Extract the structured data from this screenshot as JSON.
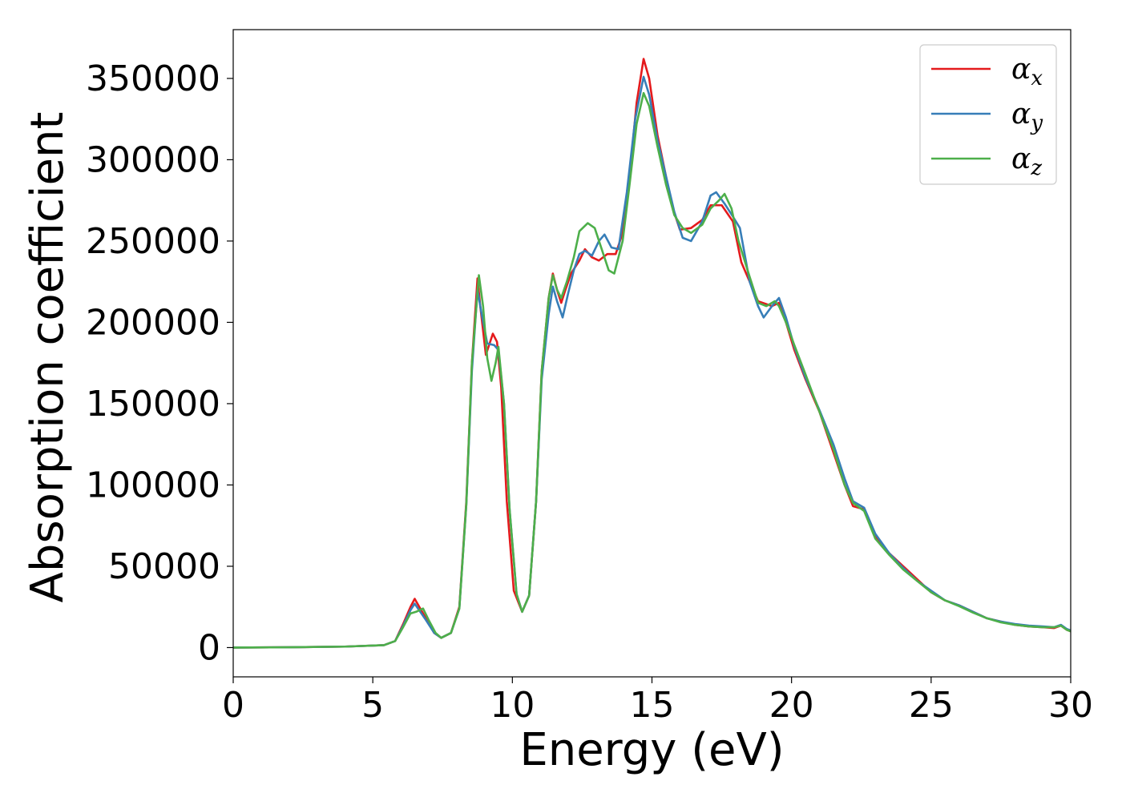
{
  "chart_data": {
    "type": "line",
    "title": "",
    "xlabel": "Energy (eV)",
    "ylabel": "Absorption coefficient",
    "xlim": [
      0,
      30
    ],
    "ylim": [
      -18000,
      380000
    ],
    "xticks": [
      0,
      5,
      10,
      15,
      20,
      25,
      30
    ],
    "xtick_labels": [
      "0",
      "5",
      "10",
      "15",
      "20",
      "25",
      "30"
    ],
    "yticks": [
      0,
      50000,
      100000,
      150000,
      200000,
      250000,
      300000,
      350000
    ],
    "ytick_labels": [
      "0",
      "50000",
      "100000",
      "150000",
      "200000",
      "250000",
      "300000",
      "350000"
    ],
    "grid": false,
    "legend": {
      "placement": "top-right"
    },
    "series": [
      {
        "name": "α",
        "subscript": "x",
        "color": "#e41a1c",
        "points": [
          [
            0,
            0
          ],
          [
            2,
            200
          ],
          [
            4,
            600
          ],
          [
            5.4,
            1500
          ],
          [
            5.8,
            4000
          ],
          [
            6.1,
            15000
          ],
          [
            6.35,
            25000
          ],
          [
            6.5,
            30000
          ],
          [
            6.7,
            24000
          ],
          [
            6.9,
            18000
          ],
          [
            7.2,
            9000
          ],
          [
            7.45,
            6000
          ],
          [
            7.8,
            9000
          ],
          [
            8.1,
            25000
          ],
          [
            8.35,
            90000
          ],
          [
            8.55,
            175000
          ],
          [
            8.75,
            227000
          ],
          [
            8.85,
            210000
          ],
          [
            9.05,
            180000
          ],
          [
            9.3,
            193000
          ],
          [
            9.45,
            188000
          ],
          [
            9.6,
            160000
          ],
          [
            9.8,
            90000
          ],
          [
            10.05,
            35000
          ],
          [
            10.35,
            22000
          ],
          [
            10.6,
            32000
          ],
          [
            10.85,
            90000
          ],
          [
            11.05,
            170000
          ],
          [
            11.3,
            215000
          ],
          [
            11.45,
            230000
          ],
          [
            11.6,
            220000
          ],
          [
            11.75,
            212000
          ],
          [
            11.9,
            220000
          ],
          [
            12.1,
            230000
          ],
          [
            12.4,
            238000
          ],
          [
            12.6,
            245000
          ],
          [
            12.85,
            240000
          ],
          [
            13.1,
            238000
          ],
          [
            13.4,
            242000
          ],
          [
            13.7,
            242000
          ],
          [
            13.95,
            255000
          ],
          [
            14.2,
            290000
          ],
          [
            14.45,
            335000
          ],
          [
            14.7,
            362000
          ],
          [
            14.9,
            350000
          ],
          [
            15.2,
            315000
          ],
          [
            15.5,
            290000
          ],
          [
            15.75,
            270000
          ],
          [
            16.0,
            257000
          ],
          [
            16.4,
            258000
          ],
          [
            16.8,
            263000
          ],
          [
            17.1,
            272000
          ],
          [
            17.5,
            272000
          ],
          [
            17.9,
            262000
          ],
          [
            18.2,
            237000
          ],
          [
            18.5,
            225000
          ],
          [
            18.8,
            213000
          ],
          [
            19.3,
            210000
          ],
          [
            19.55,
            212000
          ],
          [
            19.8,
            200000
          ],
          [
            20.1,
            183000
          ],
          [
            20.5,
            165000
          ],
          [
            21.0,
            145000
          ],
          [
            21.5,
            120000
          ],
          [
            21.9,
            100000
          ],
          [
            22.2,
            87000
          ],
          [
            22.6,
            85000
          ],
          [
            23.0,
            68000
          ],
          [
            23.5,
            58000
          ],
          [
            24.0,
            50000
          ],
          [
            24.5,
            42000
          ],
          [
            25.0,
            34000
          ],
          [
            25.5,
            29000
          ],
          [
            26.0,
            26000
          ],
          [
            26.5,
            22000
          ],
          [
            27.0,
            18000
          ],
          [
            27.5,
            16000
          ],
          [
            28.0,
            14000
          ],
          [
            28.5,
            13000
          ],
          [
            29.0,
            12500
          ],
          [
            29.4,
            12000
          ],
          [
            29.65,
            13500
          ],
          [
            29.85,
            11000
          ],
          [
            30.0,
            10000
          ]
        ]
      },
      {
        "name": "α",
        "subscript": "y",
        "color": "#377eb8",
        "points": [
          [
            0,
            0
          ],
          [
            2,
            200
          ],
          [
            4,
            600
          ],
          [
            5.4,
            1500
          ],
          [
            5.8,
            4000
          ],
          [
            6.1,
            14000
          ],
          [
            6.35,
            23000
          ],
          [
            6.5,
            27000
          ],
          [
            6.7,
            22000
          ],
          [
            6.9,
            17000
          ],
          [
            7.2,
            9000
          ],
          [
            7.45,
            6000
          ],
          [
            7.8,
            9000
          ],
          [
            8.1,
            24000
          ],
          [
            8.35,
            88000
          ],
          [
            8.55,
            170000
          ],
          [
            8.75,
            220000
          ],
          [
            8.9,
            205000
          ],
          [
            9.1,
            187000
          ],
          [
            9.35,
            186000
          ],
          [
            9.5,
            183000
          ],
          [
            9.7,
            150000
          ],
          [
            9.9,
            85000
          ],
          [
            10.15,
            33000
          ],
          [
            10.35,
            22000
          ],
          [
            10.6,
            32000
          ],
          [
            10.85,
            90000
          ],
          [
            11.05,
            165000
          ],
          [
            11.3,
            205000
          ],
          [
            11.45,
            222000
          ],
          [
            11.6,
            213000
          ],
          [
            11.8,
            203000
          ],
          [
            12.0,
            218000
          ],
          [
            12.2,
            232000
          ],
          [
            12.4,
            242000
          ],
          [
            12.6,
            244000
          ],
          [
            12.85,
            241000
          ],
          [
            13.1,
            250000
          ],
          [
            13.3,
            254000
          ],
          [
            13.55,
            246000
          ],
          [
            13.8,
            245000
          ],
          [
            14.1,
            280000
          ],
          [
            14.4,
            325000
          ],
          [
            14.7,
            351000
          ],
          [
            14.9,
            340000
          ],
          [
            15.2,
            312000
          ],
          [
            15.5,
            290000
          ],
          [
            15.8,
            268000
          ],
          [
            16.1,
            252000
          ],
          [
            16.4,
            250000
          ],
          [
            16.8,
            262000
          ],
          [
            17.1,
            278000
          ],
          [
            17.3,
            280000
          ],
          [
            17.6,
            273000
          ],
          [
            17.9,
            265000
          ],
          [
            18.15,
            258000
          ],
          [
            18.5,
            225000
          ],
          [
            18.8,
            210000
          ],
          [
            19.0,
            203000
          ],
          [
            19.3,
            210000
          ],
          [
            19.55,
            215000
          ],
          [
            19.8,
            203000
          ],
          [
            20.1,
            185000
          ],
          [
            20.5,
            166000
          ],
          [
            21.0,
            146000
          ],
          [
            21.5,
            125000
          ],
          [
            21.9,
            104000
          ],
          [
            22.2,
            90000
          ],
          [
            22.6,
            86000
          ],
          [
            23.0,
            70000
          ],
          [
            23.5,
            58000
          ],
          [
            24.0,
            49000
          ],
          [
            24.5,
            41000
          ],
          [
            25.0,
            35000
          ],
          [
            25.5,
            29000
          ],
          [
            26.0,
            26000
          ],
          [
            26.5,
            22000
          ],
          [
            27.0,
            18000
          ],
          [
            27.5,
            16000
          ],
          [
            28.0,
            14500
          ],
          [
            28.5,
            13500
          ],
          [
            29.0,
            13000
          ],
          [
            29.4,
            12500
          ],
          [
            29.65,
            14000
          ],
          [
            29.85,
            11500
          ],
          [
            30.0,
            10500
          ]
        ]
      },
      {
        "name": "α",
        "subscript": "z",
        "color": "#4daf4a",
        "points": [
          [
            0,
            0
          ],
          [
            2,
            200
          ],
          [
            4,
            600
          ],
          [
            5.4,
            1500
          ],
          [
            5.8,
            4000
          ],
          [
            6.1,
            13000
          ],
          [
            6.35,
            21000
          ],
          [
            6.55,
            22000
          ],
          [
            6.8,
            24000
          ],
          [
            7.0,
            17000
          ],
          [
            7.25,
            9000
          ],
          [
            7.45,
            6000
          ],
          [
            7.8,
            9000
          ],
          [
            8.1,
            24000
          ],
          [
            8.35,
            88000
          ],
          [
            8.55,
            175000
          ],
          [
            8.8,
            229000
          ],
          [
            8.95,
            210000
          ],
          [
            9.1,
            178000
          ],
          [
            9.25,
            164000
          ],
          [
            9.4,
            175000
          ],
          [
            9.5,
            185000
          ],
          [
            9.7,
            150000
          ],
          [
            9.9,
            85000
          ],
          [
            10.15,
            33000
          ],
          [
            10.35,
            22000
          ],
          [
            10.6,
            32000
          ],
          [
            10.85,
            90000
          ],
          [
            11.05,
            170000
          ],
          [
            11.3,
            215000
          ],
          [
            11.45,
            229000
          ],
          [
            11.6,
            220000
          ],
          [
            11.75,
            215000
          ],
          [
            11.95,
            225000
          ],
          [
            12.2,
            240000
          ],
          [
            12.4,
            256000
          ],
          [
            12.7,
            261000
          ],
          [
            12.95,
            258000
          ],
          [
            13.2,
            245000
          ],
          [
            13.45,
            232000
          ],
          [
            13.65,
            230000
          ],
          [
            13.95,
            250000
          ],
          [
            14.2,
            285000
          ],
          [
            14.45,
            322000
          ],
          [
            14.7,
            341000
          ],
          [
            14.9,
            333000
          ],
          [
            15.2,
            308000
          ],
          [
            15.5,
            285000
          ],
          [
            15.8,
            266000
          ],
          [
            16.1,
            258000
          ],
          [
            16.4,
            255000
          ],
          [
            16.8,
            260000
          ],
          [
            17.1,
            270000
          ],
          [
            17.4,
            275000
          ],
          [
            17.6,
            279000
          ],
          [
            17.85,
            270000
          ],
          [
            18.1,
            250000
          ],
          [
            18.5,
            228000
          ],
          [
            18.8,
            212000
          ],
          [
            19.1,
            210000
          ],
          [
            19.4,
            213000
          ],
          [
            19.55,
            210000
          ],
          [
            19.8,
            200000
          ],
          [
            20.1,
            186000
          ],
          [
            20.5,
            168000
          ],
          [
            21.0,
            145000
          ],
          [
            21.5,
            122000
          ],
          [
            21.9,
            100000
          ],
          [
            22.2,
            89000
          ],
          [
            22.6,
            84000
          ],
          [
            23.0,
            67000
          ],
          [
            23.5,
            57000
          ],
          [
            24.0,
            48000
          ],
          [
            24.5,
            41000
          ],
          [
            25.0,
            34000
          ],
          [
            25.5,
            29000
          ],
          [
            26.0,
            25500
          ],
          [
            26.5,
            21500
          ],
          [
            27.0,
            18000
          ],
          [
            27.5,
            15500
          ],
          [
            28.0,
            14000
          ],
          [
            28.5,
            13000
          ],
          [
            29.0,
            12500
          ],
          [
            29.4,
            12500
          ],
          [
            29.65,
            13500
          ],
          [
            29.85,
            11000
          ],
          [
            30.0,
            10000
          ]
        ]
      }
    ]
  }
}
